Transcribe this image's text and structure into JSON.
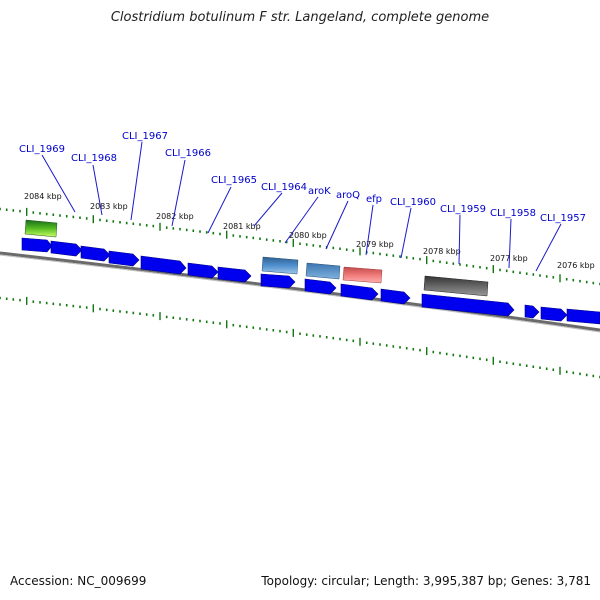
{
  "title": "Clostridium botulinum F str. Langeland, complete genome",
  "footer": {
    "accession": "Accession: NC_009699",
    "summary": "Topology: circular; Length: 3,995,387 bp; Genes: 3,781"
  },
  "scale_labels": [
    "2084 kbp",
    "2083 kbp",
    "2082 kbp",
    "2081 kbp",
    "2080 kbp",
    "2079 kbp",
    "2078 kbp",
    "2077 kbp",
    "2076 kbp"
  ],
  "gene_labels": [
    "CLI_1969",
    "CLI_1968",
    "CLI_1967",
    "CLI_1966",
    "CLI_1965",
    "CLI_1964",
    "aroK",
    "aroQ",
    "efp",
    "CLI_1960",
    "CLI_1959",
    "CLI_1958",
    "CLI_1957"
  ],
  "colors": {
    "gene": "#0000ee",
    "backbone": "#777777",
    "tick": "#117711",
    "feature_green": "#66cc33",
    "feature_steelblue": "#4682b4",
    "feature_salmon": "#ee6666",
    "feature_gray": "#555555"
  }
}
